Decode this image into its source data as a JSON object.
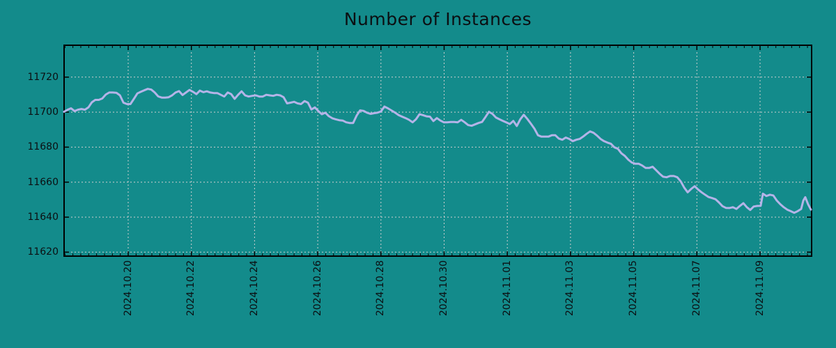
{
  "colors": {
    "background": "#138B8B",
    "line": "#B4B4E8",
    "grid": "#CFCFCF",
    "axis_border": "#000000",
    "text": "#0B0F12"
  },
  "chart_data": {
    "type": "line",
    "title": "Number of Instances",
    "xlabel": "",
    "ylabel": "",
    "legend": null,
    "grid": "dotted",
    "x_axis": {
      "tick_labels": [
        "2024.10.20",
        "2024.10.22",
        "2024.10.24",
        "2024.10.26",
        "2024.10.28",
        "2024.10.30",
        "2024.11.01",
        "2024.11.03",
        "2024.11.05",
        "2024.11.07",
        "2024.11.09"
      ],
      "tick_positions_days": [
        0,
        2,
        4,
        6,
        8,
        10,
        12,
        14,
        16,
        18,
        20
      ],
      "visible_range_days": [
        -2.03,
        21.63
      ],
      "minor_tick_interval_days": 0.25
    },
    "y_axis": {
      "tick_labels": [
        "11620",
        "11640",
        "11660",
        "11680",
        "11700",
        "11720"
      ],
      "tick_values": [
        11620,
        11640,
        11660,
        11680,
        11700,
        11720
      ],
      "visible_range": [
        11617.7,
        11738.2
      ]
    },
    "series": [
      {
        "name": "Number of Instances",
        "points": [
          [
            -2.03,
            11700.2
          ],
          [
            -1.92,
            11701.3
          ],
          [
            -1.81,
            11702.2
          ],
          [
            -1.7,
            11700.6
          ],
          [
            -1.59,
            11701.4
          ],
          [
            -1.48,
            11701.8
          ],
          [
            -1.37,
            11701.4
          ],
          [
            -1.26,
            11702.7
          ],
          [
            -1.15,
            11705.6
          ],
          [
            -1.04,
            11707.0
          ],
          [
            -0.93,
            11707.0
          ],
          [
            -0.82,
            11707.8
          ],
          [
            -0.71,
            11710.0
          ],
          [
            -0.6,
            11711.2
          ],
          [
            -0.49,
            11711.2
          ],
          [
            -0.37,
            11711.0
          ],
          [
            -0.26,
            11709.6
          ],
          [
            -0.15,
            11705.4
          ],
          [
            -0.04,
            11704.6
          ],
          [
            0.07,
            11704.6
          ],
          [
            0.18,
            11707.6
          ],
          [
            0.29,
            11710.7
          ],
          [
            0.4,
            11711.6
          ],
          [
            0.51,
            11712.5
          ],
          [
            0.62,
            11713.3
          ],
          [
            0.73,
            11712.9
          ],
          [
            0.84,
            11711.2
          ],
          [
            0.95,
            11709.0
          ],
          [
            1.06,
            11708.3
          ],
          [
            1.17,
            11708.3
          ],
          [
            1.28,
            11708.5
          ],
          [
            1.39,
            11709.6
          ],
          [
            1.5,
            11711.2
          ],
          [
            1.61,
            11712.0
          ],
          [
            1.72,
            11709.8
          ],
          [
            1.83,
            11711.2
          ],
          [
            1.94,
            11712.7
          ],
          [
            2.05,
            11711.6
          ],
          [
            2.16,
            11710.3
          ],
          [
            2.27,
            11712.3
          ],
          [
            2.38,
            11711.4
          ],
          [
            2.49,
            11711.9
          ],
          [
            2.6,
            11711.2
          ],
          [
            2.71,
            11710.9
          ],
          [
            2.82,
            11710.9
          ],
          [
            2.93,
            11709.9
          ],
          [
            3.04,
            11708.9
          ],
          [
            3.15,
            11711.2
          ],
          [
            3.26,
            11710.3
          ],
          [
            3.37,
            11707.6
          ],
          [
            3.48,
            11709.9
          ],
          [
            3.59,
            11711.9
          ],
          [
            3.7,
            11709.6
          ],
          [
            3.81,
            11708.9
          ],
          [
            3.93,
            11709.3
          ],
          [
            4.04,
            11709.6
          ],
          [
            4.15,
            11708.9
          ],
          [
            4.26,
            11708.9
          ],
          [
            4.37,
            11709.9
          ],
          [
            4.48,
            11709.6
          ],
          [
            4.59,
            11709.3
          ],
          [
            4.7,
            11709.9
          ],
          [
            4.81,
            11709.6
          ],
          [
            4.92,
            11708.5
          ],
          [
            5.03,
            11705.0
          ],
          [
            5.14,
            11705.4
          ],
          [
            5.25,
            11705.9
          ],
          [
            5.36,
            11705.0
          ],
          [
            5.47,
            11704.6
          ],
          [
            5.58,
            11706.3
          ],
          [
            5.69,
            11705.4
          ],
          [
            5.8,
            11701.5
          ],
          [
            5.91,
            11702.7
          ],
          [
            6.02,
            11700.6
          ],
          [
            6.13,
            11698.8
          ],
          [
            6.24,
            11699.7
          ],
          [
            6.35,
            11697.7
          ],
          [
            6.46,
            11696.5
          ],
          [
            6.57,
            11695.9
          ],
          [
            6.68,
            11695.4
          ],
          [
            6.79,
            11695.2
          ],
          [
            6.9,
            11694.2
          ],
          [
            7.01,
            11693.8
          ],
          [
            7.12,
            11693.8
          ],
          [
            7.23,
            11698.0
          ],
          [
            7.34,
            11701.0
          ],
          [
            7.45,
            11700.7
          ],
          [
            7.56,
            11699.7
          ],
          [
            7.67,
            11699.0
          ],
          [
            7.78,
            11699.4
          ],
          [
            7.89,
            11699.7
          ],
          [
            8.0,
            11700.4
          ],
          [
            8.11,
            11703.2
          ],
          [
            8.22,
            11702.2
          ],
          [
            8.33,
            11701.0
          ],
          [
            8.45,
            11699.7
          ],
          [
            8.56,
            11698.3
          ],
          [
            8.67,
            11697.4
          ],
          [
            8.78,
            11696.6
          ],
          [
            8.89,
            11695.6
          ],
          [
            9.0,
            11694.2
          ],
          [
            9.11,
            11695.9
          ],
          [
            9.22,
            11698.8
          ],
          [
            9.33,
            11698.3
          ],
          [
            9.44,
            11697.6
          ],
          [
            9.55,
            11697.4
          ],
          [
            9.66,
            11694.9
          ],
          [
            9.77,
            11696.6
          ],
          [
            9.88,
            11695.2
          ],
          [
            9.99,
            11694.2
          ],
          [
            10.1,
            11694.2
          ],
          [
            10.21,
            11694.4
          ],
          [
            10.32,
            11694.4
          ],
          [
            10.43,
            11694.2
          ],
          [
            10.54,
            11695.6
          ],
          [
            10.65,
            11694.2
          ],
          [
            10.76,
            11692.6
          ],
          [
            10.87,
            11692.2
          ],
          [
            10.98,
            11693.0
          ],
          [
            11.09,
            11693.8
          ],
          [
            11.2,
            11694.4
          ],
          [
            11.31,
            11697.2
          ],
          [
            11.42,
            11700.2
          ],
          [
            11.53,
            11699.0
          ],
          [
            11.64,
            11696.9
          ],
          [
            11.75,
            11695.9
          ],
          [
            11.86,
            11695.0
          ],
          [
            11.97,
            11694.1
          ],
          [
            12.08,
            11693.2
          ],
          [
            12.19,
            11695.0
          ],
          [
            12.3,
            11692.1
          ],
          [
            12.41,
            11695.9
          ],
          [
            12.52,
            11698.5
          ],
          [
            12.63,
            11696.2
          ],
          [
            12.74,
            11693.5
          ],
          [
            12.86,
            11690.5
          ],
          [
            12.97,
            11686.8
          ],
          [
            13.08,
            11686.0
          ],
          [
            13.19,
            11686.0
          ],
          [
            13.3,
            11686.0
          ],
          [
            13.41,
            11686.8
          ],
          [
            13.52,
            11686.8
          ],
          [
            13.63,
            11684.9
          ],
          [
            13.74,
            11684.2
          ],
          [
            13.85,
            11685.5
          ],
          [
            13.96,
            11684.7
          ],
          [
            14.07,
            11683.4
          ],
          [
            14.18,
            11684.2
          ],
          [
            14.29,
            11684.7
          ],
          [
            14.4,
            11686.0
          ],
          [
            14.51,
            11687.6
          ],
          [
            14.62,
            11689.0
          ],
          [
            14.73,
            11688.2
          ],
          [
            14.84,
            11686.6
          ],
          [
            14.95,
            11684.7
          ],
          [
            15.06,
            11683.4
          ],
          [
            15.17,
            11682.6
          ],
          [
            15.28,
            11681.9
          ],
          [
            15.39,
            11679.9
          ],
          [
            15.5,
            11679.1
          ],
          [
            15.61,
            11676.5
          ],
          [
            15.72,
            11675.0
          ],
          [
            15.83,
            11672.8
          ],
          [
            15.94,
            11671.2
          ],
          [
            16.05,
            11670.5
          ],
          [
            16.16,
            11670.5
          ],
          [
            16.27,
            11669.5
          ],
          [
            16.38,
            11668.1
          ],
          [
            16.49,
            11668.1
          ],
          [
            16.6,
            11668.8
          ],
          [
            16.71,
            11666.8
          ],
          [
            16.82,
            11664.8
          ],
          [
            16.93,
            11663.1
          ],
          [
            17.04,
            11662.8
          ],
          [
            17.15,
            11663.5
          ],
          [
            17.27,
            11663.5
          ],
          [
            17.38,
            11662.8
          ],
          [
            17.49,
            11660.4
          ],
          [
            17.6,
            11656.8
          ],
          [
            17.71,
            11654.2
          ],
          [
            17.82,
            11656.1
          ],
          [
            17.93,
            11657.7
          ],
          [
            18.04,
            11655.8
          ],
          [
            18.15,
            11654.2
          ],
          [
            18.26,
            11652.8
          ],
          [
            18.37,
            11651.5
          ],
          [
            18.48,
            11650.9
          ],
          [
            18.59,
            11650.2
          ],
          [
            18.7,
            11648.4
          ],
          [
            18.81,
            11646.3
          ],
          [
            18.92,
            11645.3
          ],
          [
            19.03,
            11645.2
          ],
          [
            19.14,
            11645.7
          ],
          [
            19.25,
            11644.7
          ],
          [
            19.36,
            11646.4
          ],
          [
            19.47,
            11648.0
          ],
          [
            19.58,
            11645.7
          ],
          [
            19.69,
            11644.1
          ],
          [
            19.8,
            11646.1
          ],
          [
            19.91,
            11646.4
          ],
          [
            20.02,
            11646.5
          ],
          [
            20.09,
            11653.4
          ],
          [
            20.2,
            11652.1
          ],
          [
            20.31,
            11652.8
          ],
          [
            20.42,
            11652.4
          ],
          [
            20.53,
            11649.5
          ],
          [
            20.64,
            11647.4
          ],
          [
            20.75,
            11645.7
          ],
          [
            20.86,
            11644.3
          ],
          [
            20.97,
            11643.4
          ],
          [
            21.08,
            11642.5
          ],
          [
            21.19,
            11643.4
          ],
          [
            21.3,
            11644.7
          ],
          [
            21.37,
            11649.5
          ],
          [
            21.43,
            11651.4
          ],
          [
            21.52,
            11647.4
          ],
          [
            21.61,
            11644.3
          ]
        ]
      }
    ]
  }
}
